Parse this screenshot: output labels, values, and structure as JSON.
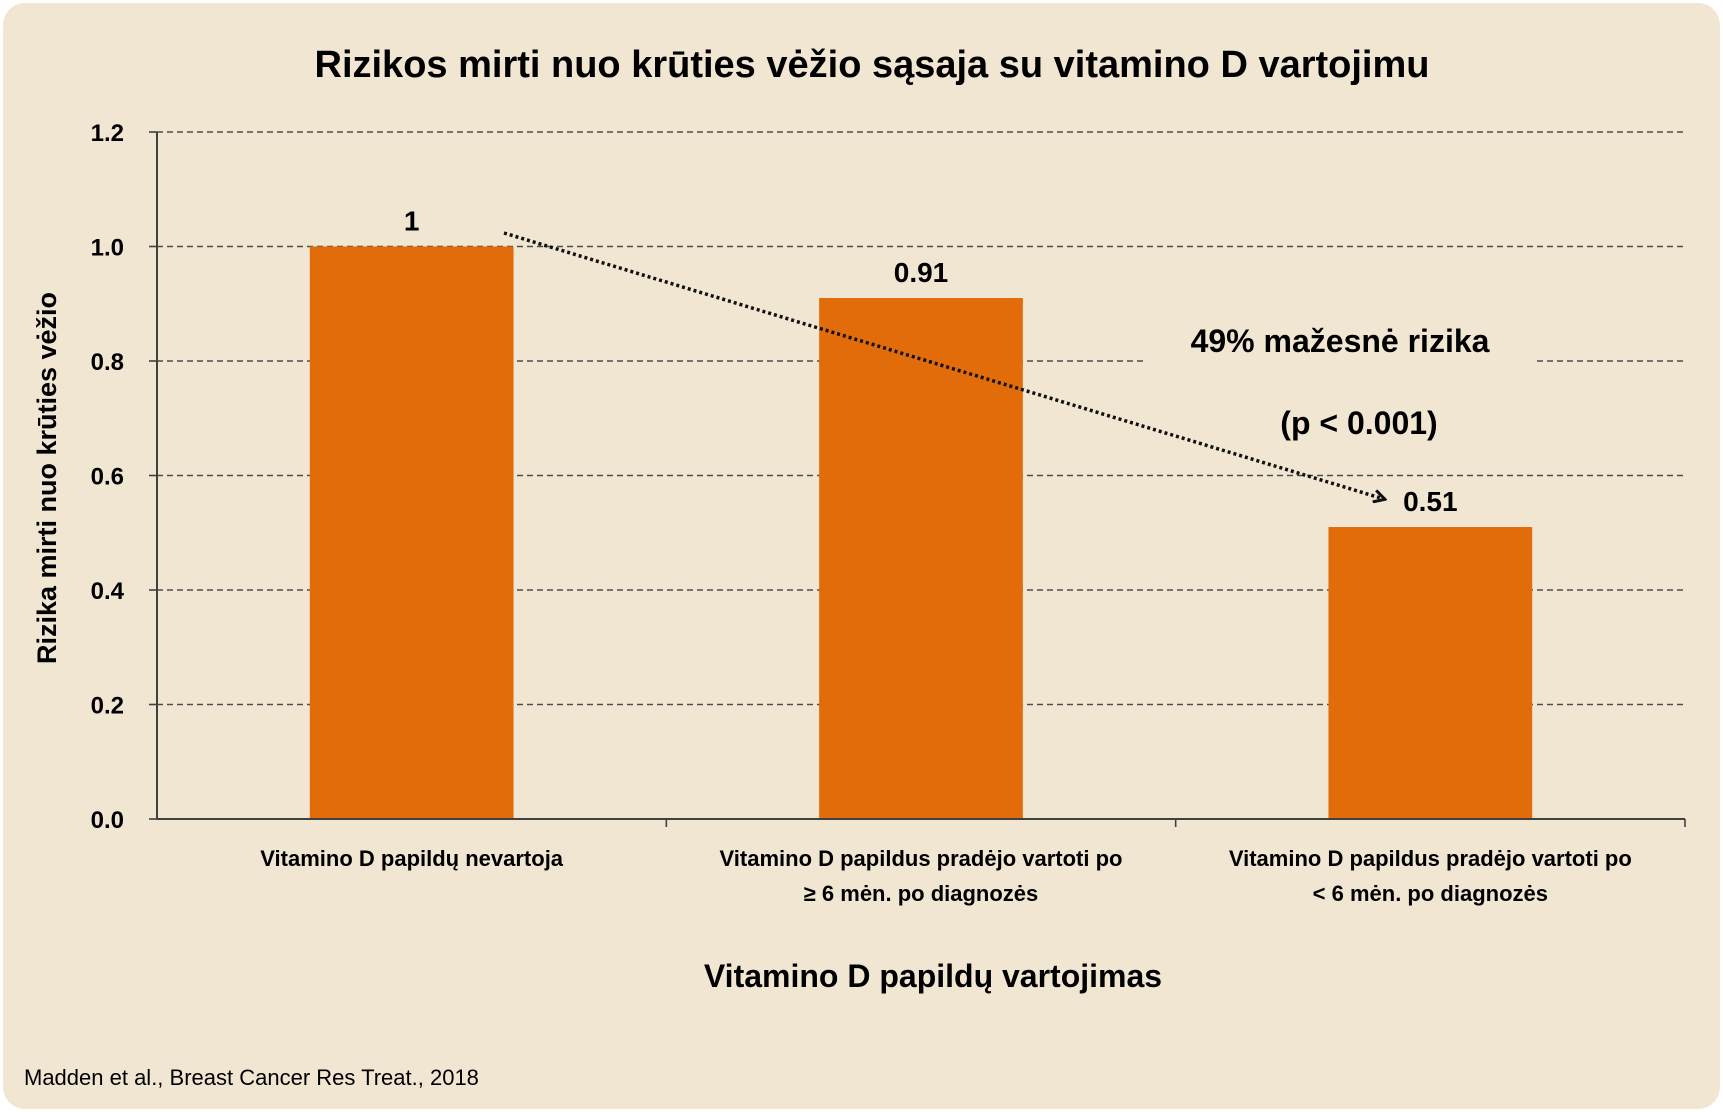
{
  "chart_data": {
    "type": "bar",
    "title": "Rizikos mirti nuo krūties vėžio sąsaja su vitamino D vartojimu",
    "xlabel": "Vitamino D papildų vartojimas",
    "ylabel": "Rizika mirti nuo krūties vėžio",
    "categories": [
      "Vitamino D papildų nevartoja",
      "Vitamino D papildus pradėjo vartoti po\n≥ 6 mėn. po diagnozės",
      "Vitamino D papildus pradėjo vartoti po\n< 6 mėn. po diagnozės"
    ],
    "values": [
      1,
      0.91,
      0.51
    ],
    "ylim": [
      0,
      1.2
    ],
    "y_ticks": [
      0,
      0.2,
      0.4,
      0.6,
      0.8,
      1.0,
      1.2
    ],
    "grid": true,
    "legend": "none",
    "annotation": {
      "lines": [
        "49% mažesnė rizika",
        "(p < 0.001)"
      ]
    }
  },
  "source": "Madden et al., Breast Cancer Res Treat., 2018",
  "colors": {
    "background": "#F1E6D2",
    "bar": "#E36C0A",
    "grid": "#4D4D4D",
    "axis": "#404040",
    "text": "#000000",
    "arrow": "#111111"
  }
}
